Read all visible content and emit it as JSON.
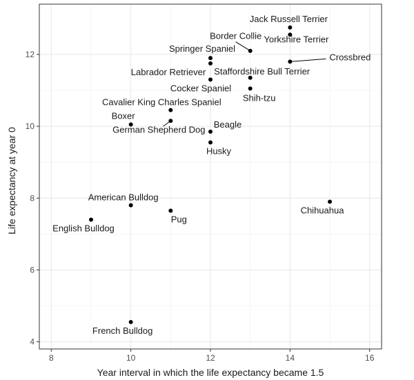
{
  "chart_data": {
    "type": "scatter",
    "title": "",
    "xlabel": "Year interval in which the life expectancy became 1.5",
    "ylabel": "Life expectancy at year 0",
    "xlim": [
      7.7,
      16.3
    ],
    "ylim": [
      3.8,
      13.4
    ],
    "xticks": [
      8,
      10,
      12,
      14,
      16
    ],
    "yticks": [
      4,
      6,
      8,
      10,
      12
    ],
    "grid": true,
    "point_color": "#000000",
    "points": [
      {
        "label": "Jack Russell Terrier",
        "x": 14,
        "y": 12.75
      },
      {
        "label": "Yorkshire Terrier",
        "x": 14,
        "y": 12.55
      },
      {
        "label": "Border Collie",
        "x": 13,
        "y": 12.1
      },
      {
        "label": "Crossbred",
        "x": 14,
        "y": 11.8
      },
      {
        "label": "Springer Spaniel",
        "x": 12,
        "y": 11.9
      },
      {
        "label": "Labrador Retriever",
        "x": 12,
        "y": 11.75
      },
      {
        "label": "Staffordshire Bull Terrier",
        "x": 13,
        "y": 11.35
      },
      {
        "label": "Cocker Spaniel",
        "x": 12,
        "y": 11.3
      },
      {
        "label": "Shih-tzu",
        "x": 13,
        "y": 11.05
      },
      {
        "label": "Cavalier King Charles Spaniel",
        "x": 11,
        "y": 10.45
      },
      {
        "label": "German Shepherd Dog",
        "x": 11,
        "y": 10.15
      },
      {
        "label": "Boxer",
        "x": 10,
        "y": 10.05
      },
      {
        "label": "Beagle",
        "x": 12,
        "y": 9.85
      },
      {
        "label": "Husky",
        "x": 12,
        "y": 9.55
      },
      {
        "label": "Chihuahua",
        "x": 15,
        "y": 7.9
      },
      {
        "label": "American Bulldog",
        "x": 10,
        "y": 7.8
      },
      {
        "label": "Pug",
        "x": 11,
        "y": 7.65
      },
      {
        "label": "English Bulldog",
        "x": 9,
        "y": 7.4
      },
      {
        "label": "French Bulldog",
        "x": 10,
        "y": 4.55
      }
    ]
  }
}
